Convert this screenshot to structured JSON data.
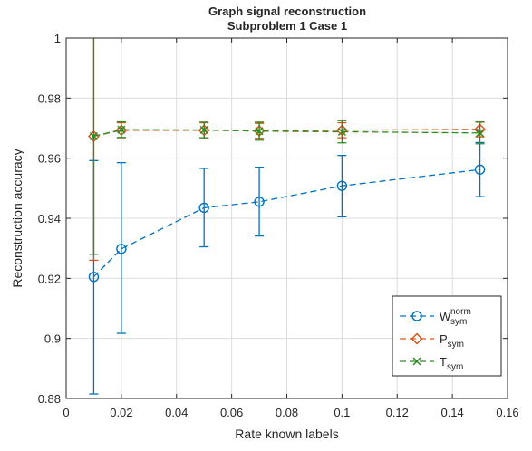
{
  "chart_data": {
    "type": "line",
    "title": [
      "Graph signal reconstruction",
      "Subproblem 1 Case 1"
    ],
    "xlabel": "Rate known labels",
    "ylabel": "Reconstruction accuracy",
    "xlim": [
      0,
      0.16
    ],
    "ylim": [
      0.88,
      1.0
    ],
    "xticks": [
      0,
      0.02,
      0.04,
      0.06,
      0.08,
      0.1,
      0.12,
      0.14,
      0.16
    ],
    "xtick_labels": [
      "0",
      "0.02",
      "0.04",
      "0.06",
      "0.08",
      "0.1",
      "0.12",
      "0.14",
      "0.16"
    ],
    "yticks": [
      0.88,
      0.9,
      0.92,
      0.94,
      0.96,
      0.98,
      1.0
    ],
    "ytick_labels": [
      "0.88",
      "0.9",
      "0.92",
      "0.94",
      "0.96",
      "0.98",
      "1"
    ],
    "grid": true,
    "legend_position": "bottom-right",
    "x": [
      0.01,
      0.02,
      0.05,
      0.07,
      0.1,
      0.15
    ],
    "series": [
      {
        "name": "W",
        "name_sup": "norm",
        "name_sub": "sym",
        "color": "#0072BD",
        "marker": "circle",
        "values": [
          0.9205,
          0.9298,
          0.9435,
          0.9455,
          0.9508,
          0.9562
        ],
        "err_low": [
          0.8815,
          0.9017,
          0.9305,
          0.9341,
          0.9405,
          0.9472
        ],
        "err_high": [
          0.9592,
          0.9585,
          0.9566,
          0.957,
          0.9609,
          0.9652
        ]
      },
      {
        "name": "P",
        "name_sub": "sym",
        "color": "#D95319",
        "marker": "diamond",
        "values": [
          0.9673,
          0.9693,
          0.9693,
          0.9691,
          0.9693,
          0.9696
        ],
        "err_low": [
          0.926,
          0.9668,
          0.9668,
          0.9666,
          0.9668,
          0.9671
        ],
        "err_high": [
          1.0087,
          0.9718,
          0.9718,
          0.9716,
          0.9718,
          0.9721
        ]
      },
      {
        "name": "T",
        "name_sub": "sym",
        "color": "#2E8B22",
        "marker": "x",
        "values": [
          0.9673,
          0.9695,
          0.9694,
          0.969,
          0.9688,
          0.9684
        ],
        "err_low": [
          0.928,
          0.9669,
          0.9668,
          0.966,
          0.9651,
          0.9648
        ],
        "err_high": [
          1.0066,
          0.9721,
          0.972,
          0.972,
          0.9725,
          0.972
        ]
      }
    ]
  }
}
